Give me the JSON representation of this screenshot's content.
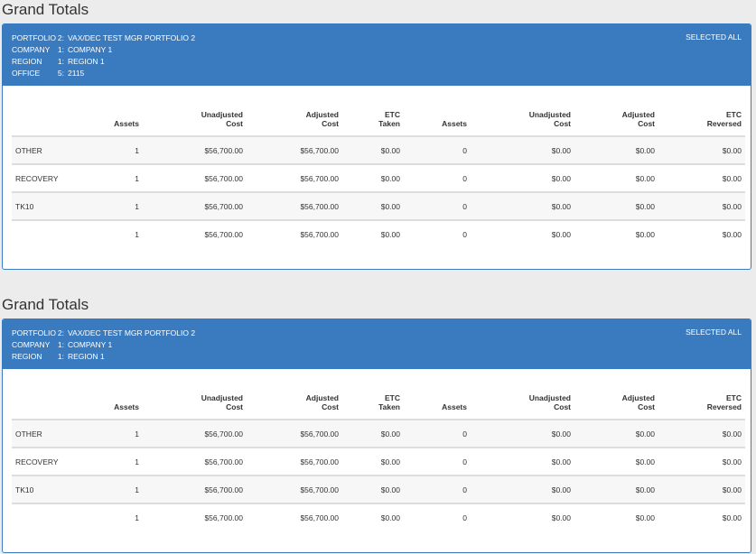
{
  "sections": [
    {
      "title": "Grand Totals",
      "selected_label": "SELECTED ALL",
      "filters": [
        {
          "key": "PORTFOLIO",
          "num": "2:",
          "value": "VAX/DEC TEST MGR PORTFOLIO 2"
        },
        {
          "key": "COMPANY",
          "num": "1:",
          "value": "COMPANY 1"
        },
        {
          "key": "REGION",
          "num": "1:",
          "value": "REGION 1"
        },
        {
          "key": "OFFICE",
          "num": "5:",
          "value": "2115"
        }
      ],
      "headers": [
        "",
        "Assets",
        "Unadjusted Cost",
        "Adjusted Cost",
        "ETC Taken",
        "Assets",
        "Unadjusted Cost",
        "Adjusted Cost",
        "ETC Reversed"
      ],
      "rows": [
        [
          "OTHER",
          "1",
          "$56,700.00",
          "$56,700.00",
          "$0.00",
          "0",
          "$0.00",
          "$0.00",
          "$0.00"
        ],
        [
          "RECOVERY",
          "1",
          "$56,700.00",
          "$56,700.00",
          "$0.00",
          "0",
          "$0.00",
          "$0.00",
          "$0.00"
        ],
        [
          "TK10",
          "1",
          "$56,700.00",
          "$56,700.00",
          "$0.00",
          "0",
          "$0.00",
          "$0.00",
          "$0.00"
        ],
        [
          "",
          "1",
          "$56,700.00",
          "$56,700.00",
          "$0.00",
          "0",
          "$0.00",
          "$0.00",
          "$0.00"
        ]
      ]
    },
    {
      "title": "Grand Totals",
      "selected_label": "SELECTED ALL",
      "filters": [
        {
          "key": "PORTFOLIO",
          "num": "2:",
          "value": "VAX/DEC TEST MGR PORTFOLIO 2"
        },
        {
          "key": "COMPANY",
          "num": "1:",
          "value": "COMPANY 1"
        },
        {
          "key": "REGION",
          "num": "1:",
          "value": "REGION 1"
        }
      ],
      "headers": [
        "",
        "Assets",
        "Unadjusted Cost",
        "Adjusted Cost",
        "ETC Taken",
        "Assets",
        "Unadjusted Cost",
        "Adjusted Cost",
        "ETC Reversed"
      ],
      "rows": [
        [
          "OTHER",
          "1",
          "$56,700.00",
          "$56,700.00",
          "$0.00",
          "0",
          "$0.00",
          "$0.00",
          "$0.00"
        ],
        [
          "RECOVERY",
          "1",
          "$56,700.00",
          "$56,700.00",
          "$0.00",
          "0",
          "$0.00",
          "$0.00",
          "$0.00"
        ],
        [
          "TK10",
          "1",
          "$56,700.00",
          "$56,700.00",
          "$0.00",
          "0",
          "$0.00",
          "$0.00",
          "$0.00"
        ],
        [
          "",
          "1",
          "$56,700.00",
          "$56,700.00",
          "$0.00",
          "0",
          "$0.00",
          "$0.00",
          "$0.00"
        ]
      ]
    }
  ]
}
